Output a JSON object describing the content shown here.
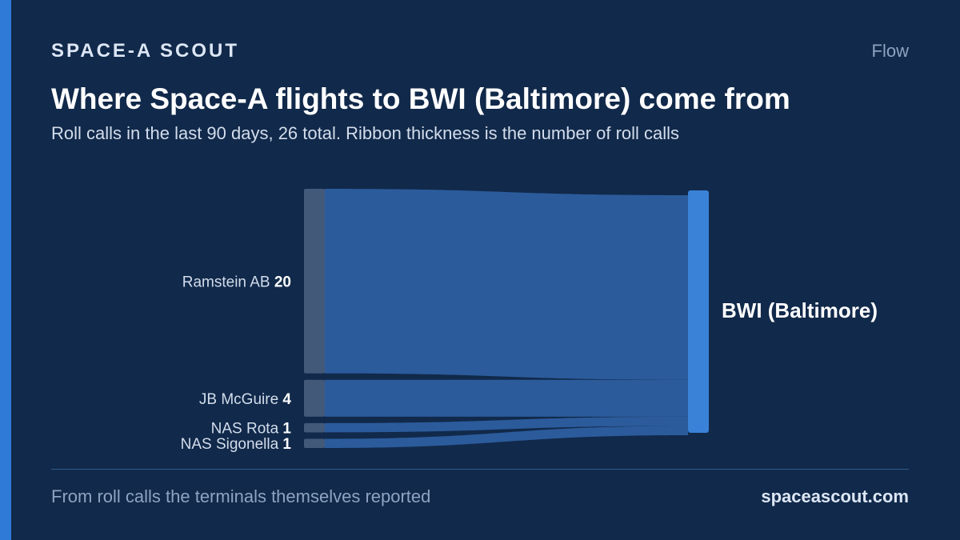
{
  "header": {
    "brand": "SPACE-A SCOUT",
    "section": "Flow"
  },
  "chart_data": {
    "type": "sankey",
    "title": "Where Space-A flights to BWI (Baltimore) come from",
    "subtitle": "Roll calls in the last 90 days, 26 total. Ribbon thickness is the number of roll calls",
    "target": "BWI (Baltimore)",
    "total": 26,
    "flows": [
      {
        "source": "Ramstein AB",
        "value": 20
      },
      {
        "source": "JB McGuire",
        "value": 4
      },
      {
        "source": "NAS Rota",
        "value": 1
      },
      {
        "source": "NAS Sigonella",
        "value": 1
      }
    ]
  },
  "colors": {
    "background": "#11294a",
    "accent": "#2f7ad6",
    "source_node": "#43597a",
    "ribbon": "#2b5b9b",
    "target_node": "#3a82d8"
  },
  "footer": {
    "note": "From roll calls the terminals themselves reported",
    "site": "spaceascout.com"
  }
}
